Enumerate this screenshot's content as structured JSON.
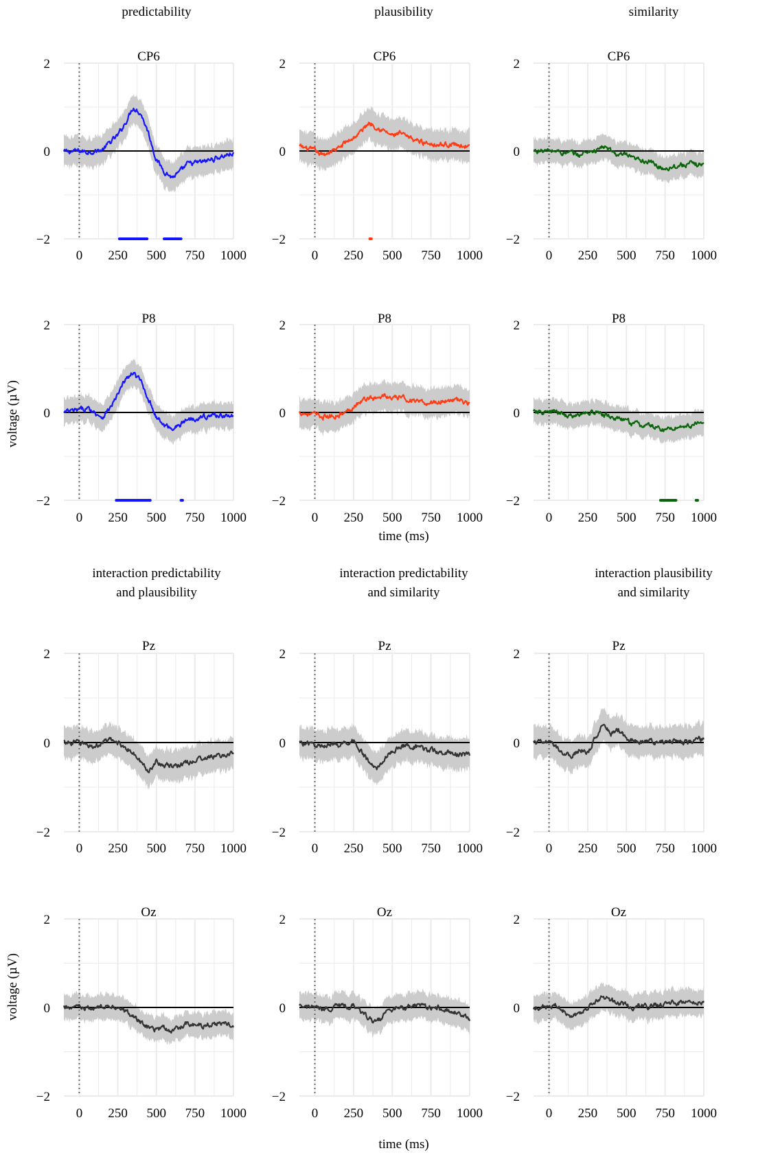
{
  "figure": {
    "section_titles": {
      "main_effects": [
        "predictability",
        "plausibility",
        "similarity"
      ],
      "interactions": [
        [
          "interaction predictability",
          "and plausibility"
        ],
        [
          "interaction predictability",
          "and similarity"
        ],
        [
          "interaction plausibility",
          "and similarity"
        ]
      ]
    },
    "ylabel": "voltage (µV)",
    "xlabel": "time (ms)",
    "colors": {
      "predictability": "#1414ff",
      "plausibility": "#ff3c14",
      "similarity": "#0a640a",
      "interaction": "#333333",
      "ribbon": "#cccccc",
      "grid": "#ebebeb",
      "zero_line": "#000000",
      "onset_line": "#666666"
    }
  },
  "chart_data": [
    {
      "type": "line",
      "row": 0,
      "col": 0,
      "title": "CP6",
      "color_key": "predictability",
      "xlim": [
        -100,
        1000
      ],
      "ylim": [
        -2,
        2
      ],
      "xticks": [
        0,
        250,
        500,
        750,
        1000
      ],
      "yticks": [
        -2,
        0,
        2
      ],
      "x": [
        -100,
        0,
        50,
        100,
        150,
        200,
        250,
        300,
        350,
        400,
        450,
        500,
        550,
        600,
        650,
        700,
        800,
        900,
        1000
      ],
      "y": [
        -0.02,
        0.0,
        -0.02,
        0.0,
        0.02,
        0.2,
        0.35,
        0.65,
        1.0,
        0.85,
        0.4,
        -0.2,
        -0.45,
        -0.6,
        -0.5,
        -0.3,
        -0.25,
        -0.15,
        -0.05
      ],
      "ci": 0.33,
      "significant_ms": [
        [
          260,
          440
        ],
        [
          550,
          660
        ]
      ]
    },
    {
      "type": "line",
      "row": 0,
      "col": 1,
      "title": "CP6",
      "color_key": "plausibility",
      "xlim": [
        -100,
        1000
      ],
      "ylim": [
        -2,
        2
      ],
      "xticks": [
        0,
        250,
        500,
        750,
        1000
      ],
      "yticks": [
        -2,
        0,
        2
      ],
      "x": [
        -100,
        0,
        50,
        100,
        150,
        200,
        250,
        300,
        350,
        400,
        450,
        500,
        550,
        600,
        650,
        700,
        800,
        900,
        1000
      ],
      "y": [
        0.1,
        0.0,
        -0.1,
        0.0,
        0.05,
        0.2,
        0.3,
        0.45,
        0.65,
        0.55,
        0.45,
        0.35,
        0.4,
        0.3,
        0.25,
        0.2,
        0.15,
        0.15,
        0.1
      ],
      "ci": 0.35,
      "significant_ms": [
        [
          355,
          365
        ]
      ]
    },
    {
      "type": "line",
      "row": 0,
      "col": 2,
      "title": "CP6",
      "color_key": "similarity",
      "xlim": [
        -100,
        1000
      ],
      "ylim": [
        -2,
        2
      ],
      "xticks": [
        0,
        250,
        500,
        750,
        1000
      ],
      "yticks": [
        -2,
        0,
        2
      ],
      "x": [
        -100,
        0,
        50,
        100,
        150,
        200,
        250,
        300,
        350,
        400,
        450,
        500,
        550,
        600,
        650,
        700,
        750,
        800,
        900,
        1000
      ],
      "y": [
        0.0,
        0.0,
        0.0,
        -0.05,
        -0.05,
        -0.1,
        0.0,
        0.0,
        0.1,
        0.0,
        -0.1,
        -0.1,
        -0.2,
        -0.2,
        -0.25,
        -0.35,
        -0.4,
        -0.35,
        -0.3,
        -0.3
      ],
      "ci": 0.28,
      "significant_ms": []
    },
    {
      "type": "line",
      "row": 1,
      "col": 0,
      "title": "P8",
      "color_key": "predictability",
      "xlim": [
        -100,
        1000
      ],
      "ylim": [
        -2,
        2
      ],
      "xticks": [
        0,
        250,
        500,
        750,
        1000
      ],
      "yticks": [
        -2,
        0,
        2
      ],
      "x": [
        -100,
        0,
        50,
        100,
        150,
        200,
        250,
        300,
        350,
        400,
        450,
        500,
        550,
        600,
        650,
        700,
        800,
        900,
        1000
      ],
      "y": [
        0.0,
        0.05,
        0.1,
        0.0,
        -0.1,
        0.1,
        0.4,
        0.75,
        0.9,
        0.7,
        0.3,
        -0.1,
        -0.3,
        -0.35,
        -0.3,
        -0.15,
        -0.1,
        -0.05,
        -0.1
      ],
      "ci": 0.3,
      "significant_ms": [
        [
          240,
          460
        ],
        [
          660,
          670
        ]
      ]
    },
    {
      "type": "line",
      "row": 1,
      "col": 1,
      "title": "P8",
      "color_key": "plausibility",
      "xlim": [
        -100,
        1000
      ],
      "ylim": [
        -2,
        2
      ],
      "xticks": [
        0,
        250,
        500,
        750,
        1000
      ],
      "yticks": [
        -2,
        0,
        2
      ],
      "x": [
        -100,
        0,
        50,
        100,
        150,
        200,
        250,
        300,
        350,
        400,
        450,
        500,
        550,
        600,
        650,
        700,
        800,
        900,
        1000
      ],
      "y": [
        0.0,
        -0.05,
        -0.1,
        -0.1,
        -0.05,
        0.0,
        0.15,
        0.25,
        0.35,
        0.3,
        0.4,
        0.3,
        0.35,
        0.3,
        0.25,
        0.2,
        0.25,
        0.3,
        0.2
      ],
      "ci": 0.33,
      "significant_ms": []
    },
    {
      "type": "line",
      "row": 1,
      "col": 2,
      "title": "P8",
      "color_key": "similarity",
      "xlim": [
        -100,
        1000
      ],
      "ylim": [
        -2,
        2
      ],
      "xticks": [
        0,
        250,
        500,
        750,
        1000
      ],
      "yticks": [
        -2,
        0,
        2
      ],
      "x": [
        -100,
        0,
        50,
        100,
        150,
        200,
        250,
        300,
        350,
        400,
        450,
        500,
        550,
        600,
        650,
        700,
        750,
        800,
        900,
        1000
      ],
      "y": [
        0.0,
        0.0,
        0.0,
        -0.05,
        -0.1,
        -0.05,
        0.0,
        0.0,
        -0.05,
        -0.1,
        -0.15,
        -0.2,
        -0.25,
        -0.3,
        -0.3,
        -0.35,
        -0.4,
        -0.35,
        -0.3,
        -0.25
      ],
      "ci": 0.28,
      "significant_ms": [
        [
          720,
          820
        ],
        [
          950,
          960
        ]
      ]
    },
    {
      "type": "line",
      "row": 2,
      "col": 0,
      "title": "Pz",
      "color_key": "interaction",
      "xlim": [
        -100,
        1000
      ],
      "ylim": [
        -2,
        2
      ],
      "xticks": [
        0,
        250,
        500,
        750,
        1000
      ],
      "yticks": [
        -2,
        0,
        2
      ],
      "x": [
        -100,
        0,
        50,
        100,
        150,
        200,
        250,
        300,
        350,
        400,
        450,
        500,
        550,
        600,
        650,
        700,
        800,
        900,
        1000
      ],
      "y": [
        0.0,
        0.0,
        -0.05,
        -0.1,
        0.0,
        0.05,
        0.0,
        -0.1,
        -0.25,
        -0.45,
        -0.65,
        -0.4,
        -0.5,
        -0.55,
        -0.5,
        -0.45,
        -0.35,
        -0.3,
        -0.25
      ],
      "ci": 0.35,
      "significant_ms": []
    },
    {
      "type": "line",
      "row": 2,
      "col": 1,
      "title": "Pz",
      "color_key": "interaction",
      "xlim": [
        -100,
        1000
      ],
      "ylim": [
        -2,
        2
      ],
      "xticks": [
        0,
        250,
        500,
        750,
        1000
      ],
      "yticks": [
        -2,
        0,
        2
      ],
      "x": [
        -100,
        0,
        50,
        100,
        150,
        200,
        250,
        300,
        350,
        400,
        450,
        500,
        550,
        600,
        650,
        700,
        800,
        900,
        1000
      ],
      "y": [
        0.0,
        -0.05,
        -0.1,
        0.0,
        -0.1,
        0.0,
        0.05,
        -0.2,
        -0.45,
        -0.6,
        -0.35,
        -0.2,
        -0.1,
        -0.05,
        -0.1,
        -0.15,
        -0.2,
        -0.25,
        -0.3
      ],
      "ci": 0.35,
      "significant_ms": []
    },
    {
      "type": "line",
      "row": 2,
      "col": 2,
      "title": "Pz",
      "color_key": "interaction",
      "xlim": [
        -100,
        1000
      ],
      "ylim": [
        -2,
        2
      ],
      "xticks": [
        0,
        250,
        500,
        750,
        1000
      ],
      "yticks": [
        -2,
        0,
        2
      ],
      "x": [
        -100,
        0,
        50,
        100,
        150,
        200,
        250,
        300,
        350,
        400,
        450,
        500,
        550,
        600,
        650,
        700,
        800,
        900,
        1000
      ],
      "y": [
        0.0,
        0.0,
        -0.1,
        -0.25,
        -0.3,
        -0.15,
        -0.25,
        0.1,
        0.45,
        0.2,
        0.3,
        0.1,
        0.05,
        0.0,
        0.05,
        0.0,
        0.05,
        0.0,
        0.1
      ],
      "ci": 0.35,
      "significant_ms": []
    },
    {
      "type": "line",
      "row": 3,
      "col": 0,
      "title": "Oz",
      "color_key": "interaction",
      "xlim": [
        -100,
        1000
      ],
      "ylim": [
        -2,
        2
      ],
      "xticks": [
        0,
        250,
        500,
        750,
        1000
      ],
      "yticks": [
        -2,
        0,
        2
      ],
      "x": [
        -100,
        0,
        50,
        100,
        150,
        200,
        250,
        300,
        350,
        400,
        450,
        500,
        550,
        600,
        650,
        700,
        800,
        900,
        1000
      ],
      "y": [
        0.0,
        0.0,
        -0.05,
        0.0,
        0.0,
        0.05,
        0.0,
        -0.1,
        -0.2,
        -0.35,
        -0.45,
        -0.5,
        -0.45,
        -0.55,
        -0.45,
        -0.35,
        -0.4,
        -0.35,
        -0.4
      ],
      "ci": 0.28,
      "significant_ms": []
    },
    {
      "type": "line",
      "row": 3,
      "col": 1,
      "title": "Oz",
      "color_key": "interaction",
      "xlim": [
        -100,
        1000
      ],
      "ylim": [
        -2,
        2
      ],
      "xticks": [
        0,
        250,
        500,
        750,
        1000
      ],
      "yticks": [
        -2,
        0,
        2
      ],
      "x": [
        -100,
        0,
        50,
        100,
        150,
        200,
        250,
        300,
        350,
        400,
        450,
        500,
        550,
        600,
        650,
        700,
        800,
        900,
        1000
      ],
      "y": [
        0.0,
        0.0,
        -0.05,
        0.0,
        0.05,
        0.0,
        0.05,
        -0.1,
        -0.25,
        -0.35,
        -0.15,
        -0.05,
        0.0,
        0.0,
        0.05,
        0.0,
        0.0,
        -0.1,
        -0.25
      ],
      "ci": 0.3,
      "significant_ms": []
    },
    {
      "type": "line",
      "row": 3,
      "col": 2,
      "title": "Oz",
      "color_key": "interaction",
      "xlim": [
        -100,
        1000
      ],
      "ylim": [
        -2,
        2
      ],
      "xticks": [
        0,
        250,
        500,
        750,
        1000
      ],
      "yticks": [
        -2,
        0,
        2
      ],
      "x": [
        -100,
        0,
        50,
        100,
        150,
        200,
        250,
        300,
        350,
        400,
        450,
        500,
        550,
        600,
        650,
        700,
        800,
        900,
        1000
      ],
      "y": [
        0.0,
        0.0,
        0.05,
        -0.1,
        -0.2,
        -0.1,
        0.0,
        0.1,
        0.25,
        0.15,
        0.1,
        0.05,
        0.0,
        0.05,
        0.0,
        0.05,
        0.1,
        0.15,
        0.1
      ],
      "ci": 0.3,
      "significant_ms": []
    }
  ]
}
